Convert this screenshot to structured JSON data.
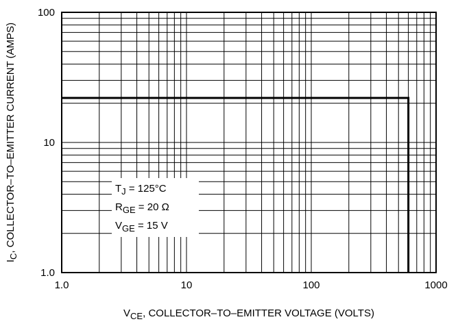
{
  "chart_data": {
    "type": "line",
    "log_x": true,
    "log_y": true,
    "grid": true,
    "xlabel": {
      "symbol": "V",
      "subscript": "CE",
      "text": ", COLLECTOR–TO–EMITTER VOLTAGE (VOLTS)"
    },
    "ylabel": {
      "symbol": "I",
      "subscript": "C",
      "text": ", COLLECTOR–TO–EMITTER CURRENT (AMPS)"
    },
    "xlim": [
      1,
      1000
    ],
    "ylim": [
      1,
      100
    ],
    "xticks": [
      {
        "value": 1,
        "label": "1.0"
      },
      10,
      100,
      1000
    ],
    "yticks": [
      {
        "value": 1,
        "label": "1.0"
      },
      10,
      100
    ],
    "x_grid_lines": [
      2,
      3,
      4,
      5,
      6,
      7,
      8,
      9,
      20,
      30,
      40,
      50,
      60,
      70,
      80,
      90,
      200,
      300,
      400,
      500,
      600,
      700,
      800,
      900
    ],
    "y_grid_lines": [
      2,
      3,
      4,
      5,
      6,
      7,
      8,
      9,
      20,
      30,
      40,
      50,
      60,
      70,
      80,
      90
    ],
    "x": [
      1,
      600,
      600
    ],
    "series": [
      {
        "color": "#000000",
        "values": [
          22,
          22,
          1
        ]
      }
    ],
    "annotations": [
      {
        "symbol": "T",
        "subscript": "J",
        "text": " = 125°C"
      },
      {
        "symbol": "R",
        "subscript": "GE",
        "text": " = 20 Ω"
      },
      {
        "symbol": "V",
        "subscript": "GE",
        "text": " = 15 V"
      }
    ]
  }
}
